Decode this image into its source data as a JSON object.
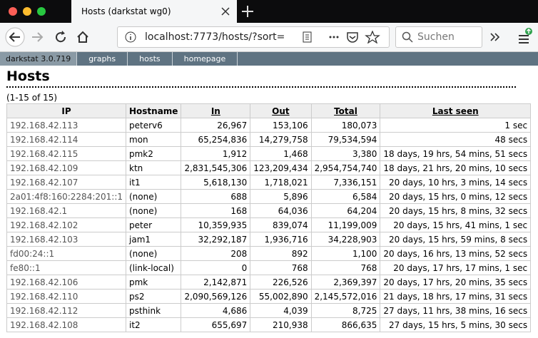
{
  "browser": {
    "tab_title": "Hosts (darkstat wg0)",
    "url": "localhost:7773/hosts/?sort=",
    "search_placeholder": "Suchen"
  },
  "nav": {
    "items": [
      "darkstat 3.0.719",
      "graphs",
      "hosts",
      "homepage"
    ]
  },
  "page": {
    "title": "Hosts",
    "count": "(1-15 of 15)"
  },
  "table": {
    "headers": [
      "IP",
      "Hostname",
      "In",
      "Out",
      "Total",
      "Last seen"
    ],
    "rows": [
      [
        "192.168.42.113",
        "peterv6",
        "26,967",
        "153,106",
        "180,073",
        "1 sec"
      ],
      [
        "192.168.42.114",
        "mon",
        "65,254,836",
        "14,279,758",
        "79,534,594",
        "48 secs"
      ],
      [
        "192.168.42.115",
        "pmk2",
        "1,912",
        "1,468",
        "3,380",
        "18 days, 19 hrs, 54 mins, 51 secs"
      ],
      [
        "192.168.42.109",
        "ktn",
        "2,831,545,306",
        "123,209,434",
        "2,954,754,740",
        "18 days, 21 hrs, 20 mins, 10 secs"
      ],
      [
        "192.168.42.107",
        "it1",
        "5,618,130",
        "1,718,021",
        "7,336,151",
        "20 days, 10 hrs, 3 mins, 14 secs"
      ],
      [
        "2a01:4f8:160:2284:201::1",
        "(none)",
        "688",
        "5,896",
        "6,584",
        "20 days, 15 hrs, 0 mins, 12 secs"
      ],
      [
        "192.168.42.1",
        "(none)",
        "168",
        "64,036",
        "64,204",
        "20 days, 15 hrs, 8 mins, 32 secs"
      ],
      [
        "192.168.42.102",
        "peter",
        "10,359,935",
        "839,074",
        "11,199,009",
        "20 days, 15 hrs, 41 mins, 1 sec"
      ],
      [
        "192.168.42.103",
        "jam1",
        "32,292,187",
        "1,936,716",
        "34,228,903",
        "20 days, 15 hrs, 59 mins, 8 secs"
      ],
      [
        "fd00:24::1",
        "(none)",
        "208",
        "892",
        "1,100",
        "20 days, 16 hrs, 13 mins, 52 secs"
      ],
      [
        "fe80::1",
        "(link-local)",
        "0",
        "768",
        "768",
        "20 days, 17 hrs, 17 mins, 1 sec"
      ],
      [
        "192.168.42.106",
        "pmk",
        "2,142,871",
        "226,526",
        "2,369,397",
        "20 days, 17 hrs, 20 mins, 35 secs"
      ],
      [
        "192.168.42.110",
        "ps2",
        "2,090,569,126",
        "55,002,890",
        "2,145,572,016",
        "21 days, 18 hrs, 17 mins, 31 secs"
      ],
      [
        "192.168.42.112",
        "psthink",
        "4,686",
        "4,039",
        "8,725",
        "27 days, 11 hrs, 38 mins, 16 secs"
      ],
      [
        "192.168.42.108",
        "it2",
        "655,697",
        "210,938",
        "866,635",
        "27 days, 15 hrs, 5 mins, 30 secs"
      ]
    ]
  }
}
